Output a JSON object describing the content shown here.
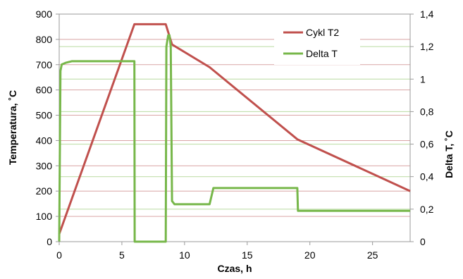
{
  "chart_data": {
    "type": "line",
    "title": "",
    "xlabel": "Czas, h",
    "ylabel": "Temperatura, ˚C",
    "y2label": "Delta T, ˚C",
    "xlim": [
      0,
      28
    ],
    "ylim": [
      0,
      900
    ],
    "y2lim": [
      0,
      1.4
    ],
    "x_ticks": [
      "0",
      "5",
      "10",
      "15",
      "20",
      "25"
    ],
    "y_ticks": [
      "0",
      "100",
      "200",
      "300",
      "400",
      "500",
      "600",
      "700",
      "800",
      "900"
    ],
    "y2_ticks": [
      "0",
      "0,2",
      "0,4",
      "0,6",
      "0,8",
      "1",
      "1,2",
      "1,4"
    ],
    "grid": "horizontal",
    "legend_position": "top-right",
    "series": [
      {
        "name": "Cykl T2",
        "axis": "left",
        "color": "#c0504d",
        "x": [
          0,
          6,
          8.5,
          9,
          12,
          19,
          28
        ],
        "y": [
          30,
          860,
          860,
          780,
          690,
          405,
          200
        ]
      },
      {
        "name": "Delta T",
        "axis": "right",
        "color": "#77b74a",
        "x": [
          0,
          0.1,
          0.2,
          0.5,
          1,
          6,
          6.02,
          8.5,
          8.55,
          8.7,
          8.8,
          8.9,
          9.0,
          9.2,
          12,
          12.3,
          19,
          19.05,
          28
        ],
        "y": [
          0,
          1.05,
          1.09,
          1.1,
          1.11,
          1.11,
          0,
          0,
          1.2,
          1.27,
          1.27,
          1.2,
          0.25,
          0.23,
          0.23,
          0.33,
          0.33,
          0.19,
          0.19
        ]
      }
    ]
  }
}
